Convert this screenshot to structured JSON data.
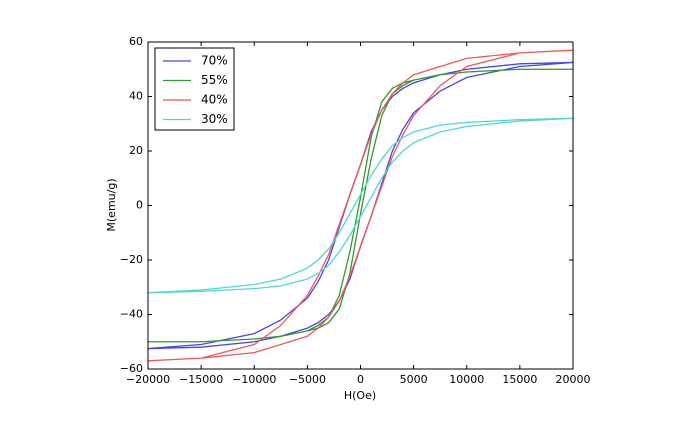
{
  "chart_data": {
    "type": "line",
    "x_label": "H(Oe)",
    "y_label": "M(emu/g)",
    "x": [
      -20000,
      -15000,
      -10000,
      -7500,
      -5000,
      -4000,
      -3000,
      -2000,
      -1000,
      0,
      1000,
      2000,
      3000,
      4000,
      5000,
      7500,
      10000,
      15000,
      20000,
      15000,
      10000,
      7500,
      5000,
      4000,
      3000,
      2000,
      1000,
      0,
      -1000,
      -2000,
      -3000,
      -4000,
      -5000,
      -7500,
      -10000,
      -15000,
      -20000
    ],
    "series": [
      {
        "name": "70%",
        "color": "#4646ec",
        "values": [
          -52.5,
          -52,
          -50,
          -48,
          -45,
          -43,
          -40,
          -35,
          -27,
          -15,
          -4,
          8,
          20,
          28,
          34,
          42,
          47,
          51,
          52.5,
          52,
          50,
          48,
          45,
          43,
          40,
          35,
          27,
          15,
          4,
          -8,
          -20,
          -28,
          -34,
          -42,
          -47,
          -51,
          -52.5
        ]
      },
      {
        "name": "55%",
        "color": "#2f9a2f",
        "values": [
          -50,
          -50,
          -49,
          -48,
          -46,
          -45,
          -43,
          -38,
          -25,
          -3,
          17,
          33,
          41,
          44,
          46,
          48,
          49,
          50,
          50,
          50,
          49,
          48,
          46,
          45,
          43,
          38,
          25,
          3,
          -17,
          -33,
          -41,
          -44,
          -46,
          -48,
          -49,
          -50,
          -50
        ]
      },
      {
        "name": "40%",
        "color": "#f25555",
        "values": [
          -57,
          -56,
          -54,
          -51,
          -48,
          -45,
          -41,
          -35,
          -26,
          -15,
          -4,
          7,
          18,
          26,
          33,
          44,
          51,
          56,
          57,
          56,
          54,
          51,
          48,
          45,
          41,
          35,
          26,
          15,
          4,
          -7,
          -18,
          -26,
          -33,
          -44,
          -51,
          -56,
          -57
        ]
      },
      {
        "name": "30%",
        "color": "#4fd6d6",
        "values": [
          -32,
          -31.5,
          -30.5,
          -29.5,
          -27,
          -25,
          -22,
          -17,
          -11,
          -4,
          3,
          10,
          16,
          20,
          23,
          27,
          29,
          31,
          32,
          31.5,
          30.5,
          29.5,
          27,
          25,
          22,
          17,
          11,
          4,
          -3,
          -10,
          -16,
          -20,
          -23,
          -27,
          -29,
          -31,
          -32
        ]
      }
    ],
    "xlim": [
      -20000,
      20000
    ],
    "xticks": [
      {
        "value": -20000,
        "label": "−20000"
      },
      {
        "value": -15000,
        "label": "−15000"
      },
      {
        "value": -10000,
        "label": "−10000"
      },
      {
        "value": -5000,
        "label": "−5000"
      },
      0,
      5000,
      10000,
      15000,
      20000
    ],
    "ylim": [
      -60,
      60
    ],
    "yticks": [
      {
        "value": -60,
        "label": "−60"
      },
      {
        "value": -40,
        "label": "−40"
      },
      {
        "value": -20,
        "label": "−20"
      },
      0,
      20,
      40,
      60
    ],
    "legend": "upper left",
    "grid": false
  }
}
